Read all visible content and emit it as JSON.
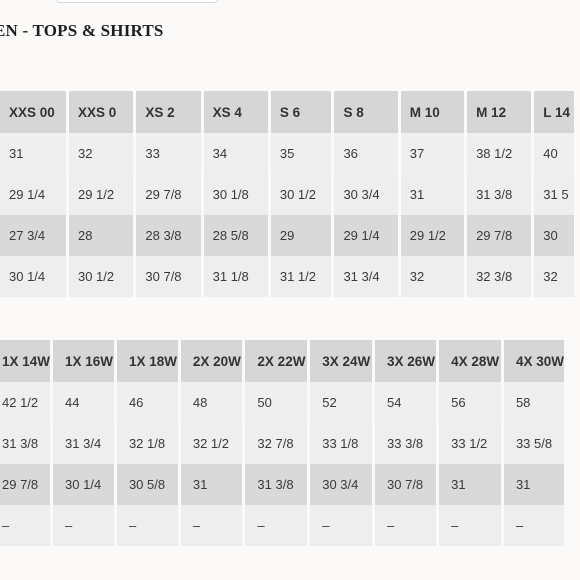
{
  "title": "EN - TOPS & SHIRTS",
  "table1": {
    "headers": [
      "XXS 00",
      "XXS 0",
      "XS 2",
      "XS 4",
      "S 6",
      "S 8",
      "M 10",
      "M 12",
      "L 14"
    ],
    "rows": [
      [
        "31",
        "32",
        "33",
        "34",
        "35",
        "36",
        "37",
        "38 1/2",
        "40"
      ],
      [
        "29 1/4",
        "29 1/2",
        "29 7/8",
        "30 1/8",
        "30 1/2",
        "30 3/4",
        "31",
        "31 3/8",
        "31 5"
      ],
      [
        "27 3/4",
        "28",
        "28 3/8",
        "28 5/8",
        "29",
        "29 1/4",
        "29 1/2",
        "29 7/8",
        "30"
      ],
      [
        "30 1/4",
        "30 1/2",
        "30 7/8",
        "31 1/8",
        "31 1/2",
        "31 3/4",
        "32",
        "32 3/8",
        "32"
      ]
    ]
  },
  "table2": {
    "headers": [
      "1X 14W",
      "1X 16W",
      "1X 18W",
      "2X 20W",
      "2X 22W",
      "3X 24W",
      "3X 26W",
      "4X 28W",
      "4X 30W"
    ],
    "rows": [
      [
        "42 1/2",
        "44",
        "46",
        "48",
        "50",
        "52",
        "54",
        "56",
        "58"
      ],
      [
        "31 3/8",
        "31 3/4",
        "32 1/8",
        "32 1/2",
        "32 7/8",
        "33 1/8",
        "33 3/8",
        "33 1/2",
        "33 5/8"
      ],
      [
        "29 7/8",
        "30 1/4",
        "30 5/8",
        "31",
        "31 3/8",
        "30 3/4",
        "30 7/8",
        "31",
        "31"
      ],
      [
        "–",
        "–",
        "–",
        "–",
        "–",
        "–",
        "–",
        "–",
        "–"
      ]
    ]
  }
}
